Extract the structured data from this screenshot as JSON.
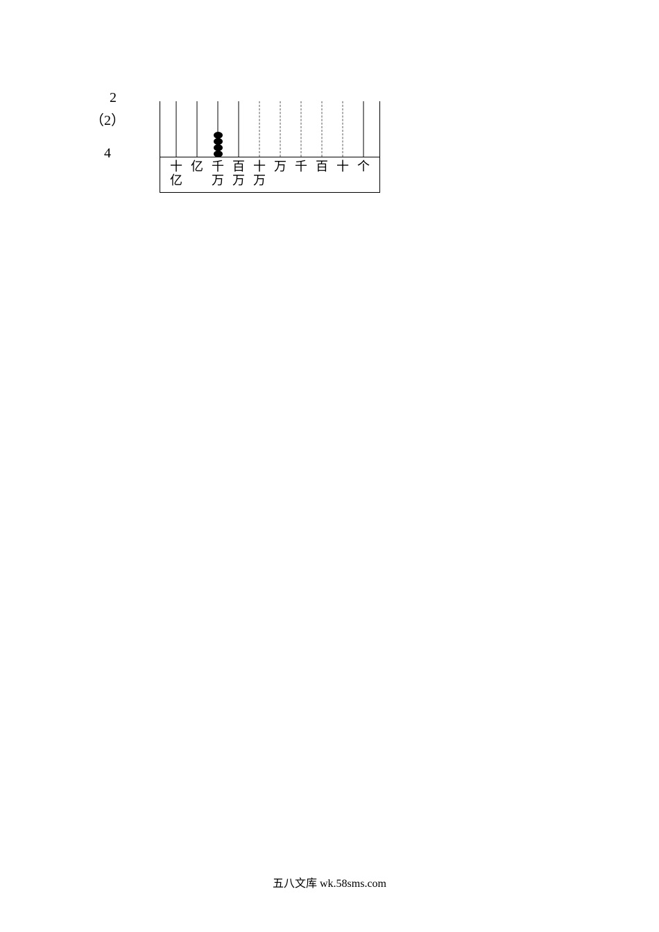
{
  "left": {
    "top_number": "2",
    "paren": "（2）",
    "bottom_number": "4"
  },
  "abacus": {
    "columns": [
      {
        "label_lines": [
          "十",
          "亿"
        ],
        "beads": 0,
        "solid": true
      },
      {
        "label_lines": [
          "亿"
        ],
        "beads": 0,
        "solid": true
      },
      {
        "label_lines": [
          "千",
          "万"
        ],
        "beads": 4,
        "solid": true
      },
      {
        "label_lines": [
          "百",
          "万"
        ],
        "beads": 0,
        "solid": true
      },
      {
        "label_lines": [
          "十",
          "万"
        ],
        "beads": 0,
        "solid": false
      },
      {
        "label_lines": [
          "万"
        ],
        "beads": 0,
        "solid": false
      },
      {
        "label_lines": [
          "千"
        ],
        "beads": 0,
        "solid": false
      },
      {
        "label_lines": [
          "百"
        ],
        "beads": 0,
        "solid": false
      },
      {
        "label_lines": [
          "十"
        ],
        "beads": 0,
        "solid": false
      },
      {
        "label_lines": [
          "个"
        ],
        "beads": 0,
        "solid": true
      }
    ],
    "bead_color": "#000000",
    "border_color": "#000000",
    "background": "#ffffff"
  },
  "footer": "五八文库 wk.58sms.com"
}
